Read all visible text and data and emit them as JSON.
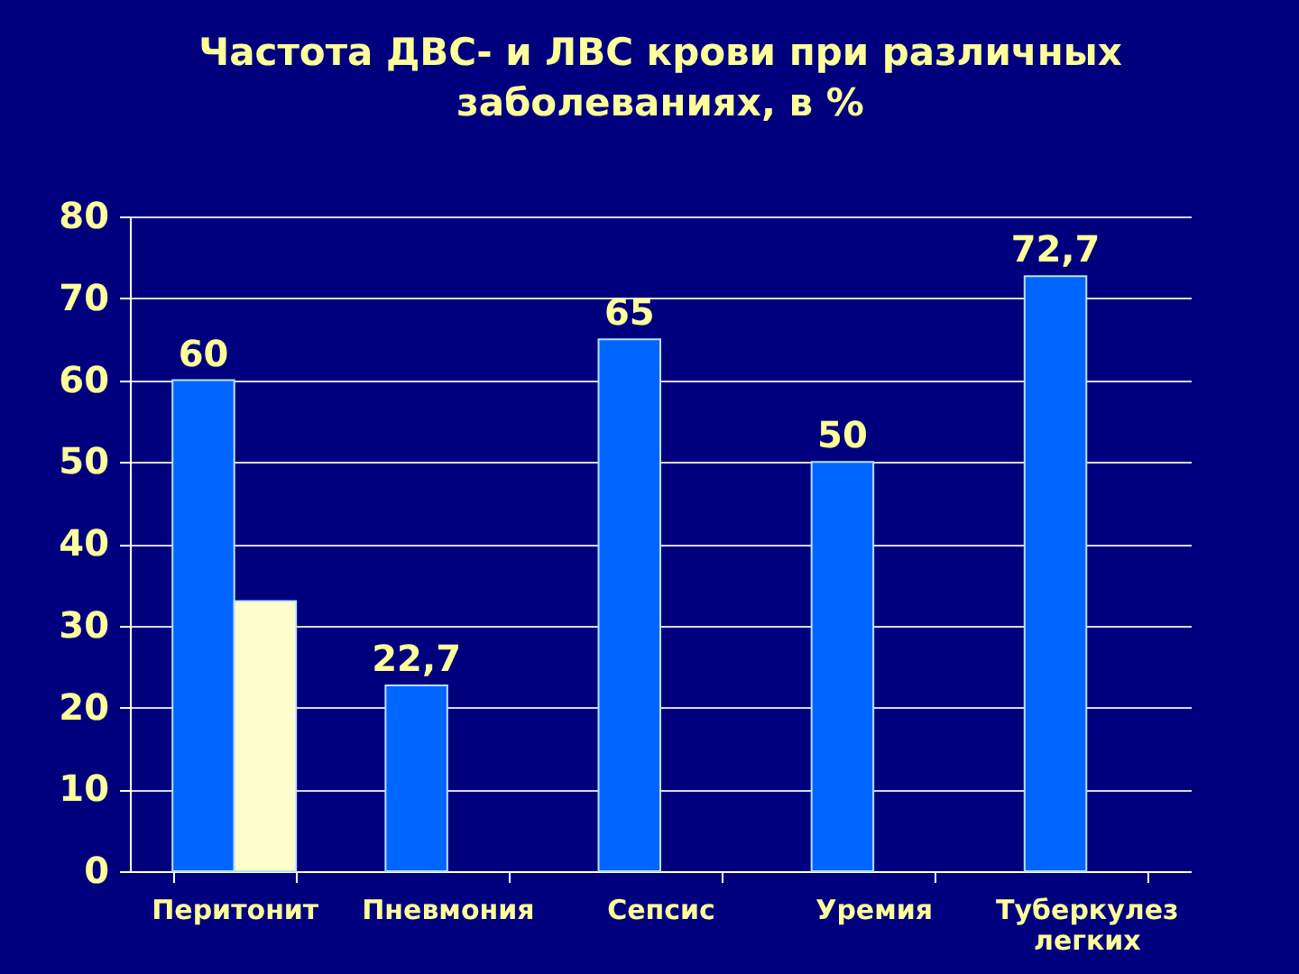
{
  "chart_data": {
    "type": "bar",
    "title": "Частота ДВС- и ЛВС крови при различных заболеваниях, в %",
    "categories": [
      "Перитонит",
      "Пневмония",
      "Сепсис",
      "Уремия",
      "Туберкулез легких"
    ],
    "series": [
      {
        "color": "#0066ff",
        "values": [
          60,
          22.7,
          65,
          50,
          72.7
        ],
        "value_labels": [
          "60",
          "22,7",
          "65",
          "50",
          "72,7"
        ]
      },
      {
        "color": "#ffffcc",
        "values": [
          33,
          null,
          null,
          null,
          null
        ]
      }
    ],
    "ylim": [
      0,
      80
    ],
    "yticks": [
      0,
      10,
      20,
      30,
      40,
      50,
      60,
      70,
      80
    ],
    "grid": "y"
  }
}
